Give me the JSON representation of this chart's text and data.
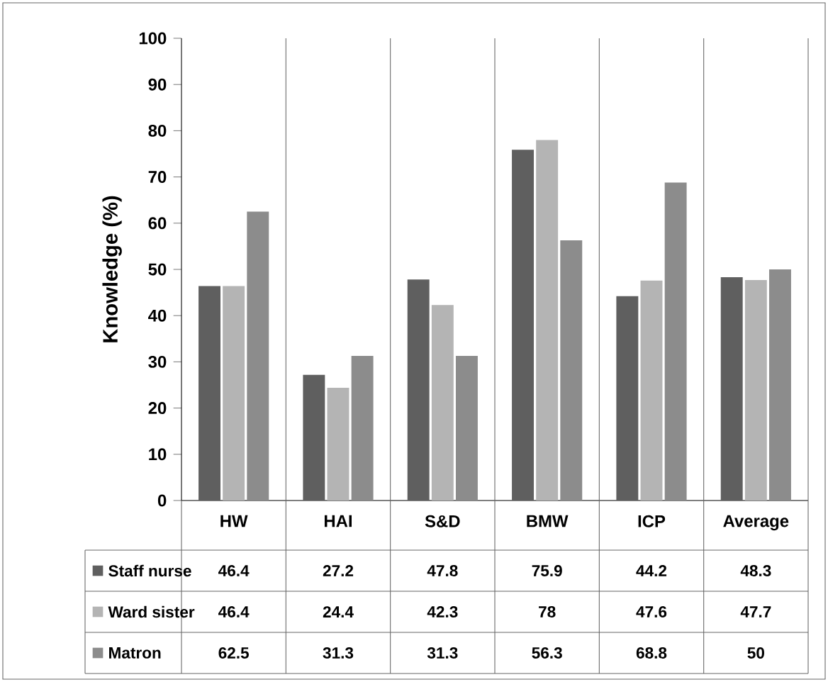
{
  "chart_data": {
    "type": "bar",
    "ylabel": "Knowledge (%)",
    "categories": [
      "HW",
      "HAI",
      "S&D",
      "BMW",
      "ICP",
      "Average"
    ],
    "series": [
      {
        "name": "Staff nurse",
        "color": "#5f5f5f",
        "values": [
          46.4,
          27.2,
          47.8,
          75.9,
          44.2,
          48.3
        ]
      },
      {
        "name": "Ward sister",
        "color": "#b4b4b4",
        "values": [
          46.4,
          24.4,
          42.3,
          78,
          47.6,
          47.7
        ]
      },
      {
        "name": "Matron",
        "color": "#8c8c8c",
        "values": [
          62.5,
          31.3,
          31.3,
          56.3,
          68.8,
          50
        ]
      }
    ],
    "ylim": [
      0,
      100
    ],
    "yticks": [
      0,
      10,
      20,
      30,
      40,
      50,
      60,
      70,
      80,
      90,
      100
    ],
    "data_labels": true,
    "legend": "bottom",
    "grid": false
  }
}
